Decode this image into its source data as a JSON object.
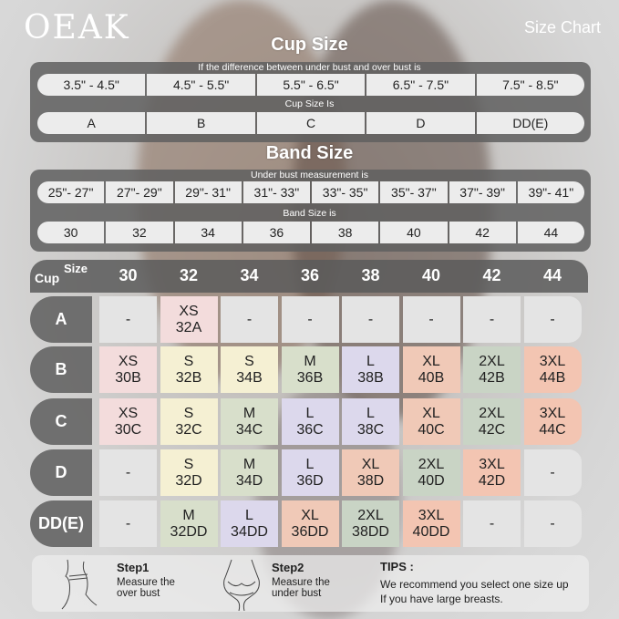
{
  "brand": "OEAK",
  "header_title": "Size Chart",
  "cup_section": {
    "title": "Cup Size",
    "difference_label": "If the  difference between under bust and over bust is",
    "differences": [
      "3.5\" -  4.5\"",
      "4.5\" -  5.5\"",
      "5.5\" -  6.5\"",
      "6.5\" -  7.5\"",
      "7.5\" -  8.5\""
    ],
    "cup_label": "Cup Size Is",
    "cups": [
      "A",
      "B",
      "C",
      "D",
      "DD(E)"
    ]
  },
  "band_section": {
    "title": "Band Size",
    "measure_label": "Under bust measurement is",
    "measurements": [
      "25\"- 27\"",
      "27\"- 29\"",
      "29\"- 31\"",
      "31\"- 33\"",
      "33\"- 35\"",
      "35\"- 37\"",
      "37\"- 39\"",
      "39\"- 41\""
    ],
    "band_label": "Band Size is",
    "bands": [
      "30",
      "32",
      "34",
      "36",
      "38",
      "40",
      "42",
      "44"
    ]
  },
  "grid": {
    "corner_cup": "Cup",
    "corner_size": "Size",
    "bands": [
      "30",
      "32",
      "34",
      "36",
      "38",
      "40",
      "42",
      "44"
    ],
    "size_colors": {
      "XS": "#f3dcdc",
      "S": "#f5f0d3",
      "M": "#d8dfcb",
      "L": "#dcd8ec",
      "XL": "#f0c9b7",
      "2XL": "#c9d4c5",
      "3XL": "#f3c5b2",
      "-": "#e4e4e4"
    },
    "rows": [
      {
        "cup": "A",
        "cells": [
          {
            "size": "-",
            "code": ""
          },
          {
            "size": "XS",
            "code": "32A"
          },
          {
            "size": "-",
            "code": ""
          },
          {
            "size": "-",
            "code": ""
          },
          {
            "size": "-",
            "code": ""
          },
          {
            "size": "-",
            "code": ""
          },
          {
            "size": "-",
            "code": ""
          },
          {
            "size": "-",
            "code": ""
          }
        ]
      },
      {
        "cup": "B",
        "cells": [
          {
            "size": "XS",
            "code": "30B"
          },
          {
            "size": "S",
            "code": "32B"
          },
          {
            "size": "S",
            "code": "34B"
          },
          {
            "size": "M",
            "code": "36B"
          },
          {
            "size": "L",
            "code": "38B"
          },
          {
            "size": "XL",
            "code": "40B"
          },
          {
            "size": "2XL",
            "code": "42B"
          },
          {
            "size": "3XL",
            "code": "44B"
          }
        ]
      },
      {
        "cup": "C",
        "cells": [
          {
            "size": "XS",
            "code": "30C"
          },
          {
            "size": "S",
            "code": "32C"
          },
          {
            "size": "M",
            "code": "34C"
          },
          {
            "size": "L",
            "code": "36C"
          },
          {
            "size": "L",
            "code": "38C"
          },
          {
            "size": "XL",
            "code": "40C"
          },
          {
            "size": "2XL",
            "code": "42C"
          },
          {
            "size": "3XL",
            "code": "44C"
          }
        ]
      },
      {
        "cup": "D",
        "cells": [
          {
            "size": "-",
            "code": ""
          },
          {
            "size": "S",
            "code": "32D"
          },
          {
            "size": "M",
            "code": "34D"
          },
          {
            "size": "L",
            "code": "36D"
          },
          {
            "size": "XL",
            "code": "38D"
          },
          {
            "size": "2XL",
            "code": "40D"
          },
          {
            "size": "3XL",
            "code": "42D"
          },
          {
            "size": "-",
            "code": ""
          }
        ]
      },
      {
        "cup": "DD(E)",
        "cells": [
          {
            "size": "-",
            "code": ""
          },
          {
            "size": "M",
            "code": "32DD"
          },
          {
            "size": "L",
            "code": "34DD"
          },
          {
            "size": "XL",
            "code": "36DD"
          },
          {
            "size": "2XL",
            "code": "38DD"
          },
          {
            "size": "3XL",
            "code": "40DD"
          },
          {
            "size": "-",
            "code": ""
          },
          {
            "size": "-",
            "code": ""
          }
        ]
      }
    ]
  },
  "steps": [
    {
      "title": "Step1",
      "text1": "Measure the",
      "text2": "over bust",
      "icon": "over-bust-measure-icon"
    },
    {
      "title": "Step2",
      "text1": "Measure the",
      "text2": "under bust",
      "icon": "under-bust-measure-icon"
    }
  ],
  "tips": {
    "title": "TIPS :",
    "line1": "We recommend you select one size up",
    "line2": "If you have large breasts."
  }
}
